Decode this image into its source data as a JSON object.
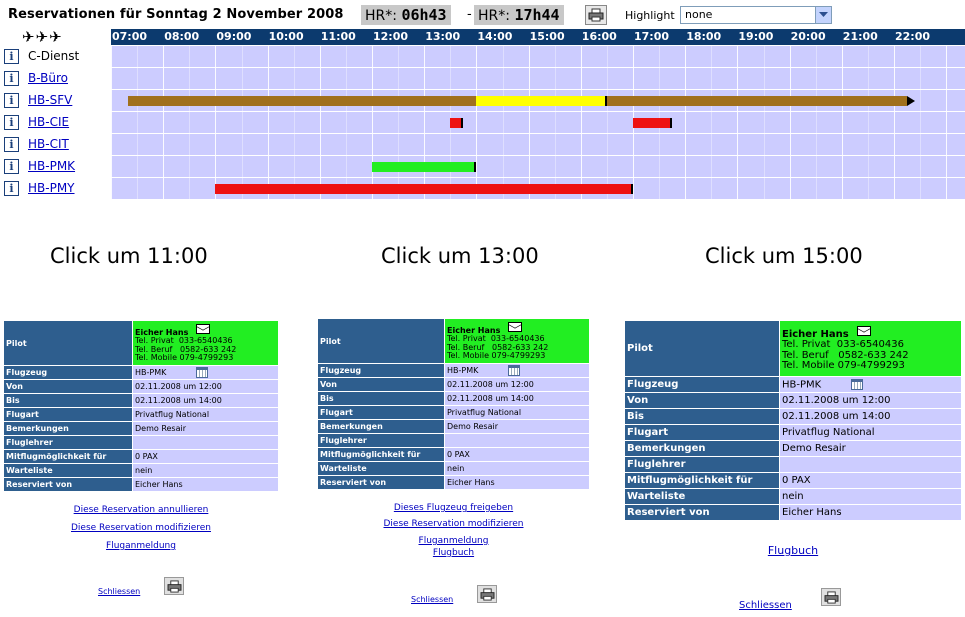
{
  "header": {
    "title": "Reservationen für Sonntag 2 November 2008",
    "hr1_label": "HR*:",
    "hr1_value": "06h43",
    "separator": "-",
    "hr2_label": "HR*:",
    "hr2_value": "17h44",
    "highlight_label": "Highlight",
    "highlight_value": "none"
  },
  "schedule": {
    "planes_glyph": "✈✈✈",
    "hours": [
      "07:00",
      "08:00",
      "09:00",
      "10:00",
      "11:00",
      "12:00",
      "13:00",
      "14:00",
      "15:00",
      "16:00",
      "17:00",
      "18:00",
      "19:00",
      "20:00",
      "21:00",
      "22:00"
    ],
    "rows": [
      {
        "name": "C-Dienst",
        "link": false
      },
      {
        "name": "B-Büro",
        "link": true
      },
      {
        "name": "HB-SFV",
        "link": true
      },
      {
        "name": "HB-CIE",
        "link": true
      },
      {
        "name": "HB-CIT",
        "link": true
      },
      {
        "name": "HB-PMK",
        "link": true
      },
      {
        "name": "HB-PMY",
        "link": true
      }
    ],
    "reservations": [
      {
        "row": 2,
        "start": "07:20",
        "end": "22:15",
        "color": "#a0701e",
        "continues": true
      },
      {
        "row": 2,
        "start": "14:00",
        "end": "16:30",
        "color": "#ffff00"
      },
      {
        "row": 3,
        "start": "13:30",
        "end": "13:45",
        "color": "#ee1111"
      },
      {
        "row": 3,
        "start": "17:00",
        "end": "17:45",
        "color": "#ee1111"
      },
      {
        "row": 5,
        "start": "12:00",
        "end": "14:00",
        "color": "#22ee22"
      },
      {
        "row": 6,
        "start": "09:00",
        "end": "17:00",
        "color": "#ee1111"
      }
    ]
  },
  "captions": [
    "Click um 11:00",
    "Click um 13:00",
    "Click um 15:00"
  ],
  "details": {
    "pilot_label": "Pilot",
    "pilot_name": "Eicher Hans",
    "tel_privat": "Tel. Privat  033-6540436",
    "tel_beruf": "Tel. Beruf   0582-633 242",
    "tel_mobile": "Tel. Mobile 079-4799293",
    "rows": [
      {
        "k": "Flugzeug",
        "v": "HB-PMK"
      },
      {
        "k": "Von",
        "v": "02.11.2008 um 12:00"
      },
      {
        "k": "Bis",
        "v": "02.11.2008 um 14:00"
      },
      {
        "k": "Flugart",
        "v": "Privatflug National"
      },
      {
        "k": "Bemerkungen",
        "v": "Demo Resair"
      },
      {
        "k": "Fluglehrer",
        "v": ""
      },
      {
        "k": "Mitflugmöglichkeit für",
        "v": "0 PAX"
      },
      {
        "k": "Warteliste",
        "v": "nein"
      },
      {
        "k": "Reserviert von",
        "v": "Eicher Hans"
      }
    ]
  },
  "panel1": {
    "links": [
      "Diese Reservation annullieren",
      "Diese Reservation modifizieren",
      "Fluganmeldung"
    ],
    "close": "Schliessen"
  },
  "panel2": {
    "links": [
      "Dieses Flugzeug freigeben",
      "Diese Reservation modifizieren",
      "Fluganmeldung",
      "Flugbuch"
    ],
    "close": "Schliessen"
  },
  "panel3": {
    "links": [
      "Flugbuch"
    ],
    "close": "Schliessen"
  }
}
